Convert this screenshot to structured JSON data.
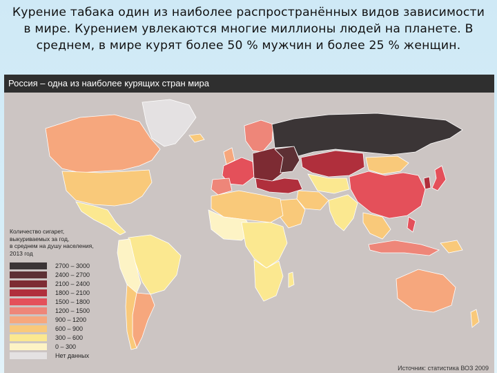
{
  "header": {
    "text": "Курение табака  один из наиболее распространённых видов зависимости в мире. Курением увлекаются многие миллионы людей на планете. В среднем, в мире курят более 50 % мужчин и более 25 % женщин."
  },
  "map": {
    "title": "Россия – одна из наиболее курящих стран мира",
    "legend_caption": "Количество сигарет,\nвыкуриваемых за год,\nв среднем на душу населения,\n2013 год",
    "legend": [
      {
        "label": "2700 – 3000",
        "color": "#3b3536"
      },
      {
        "label": "2400 – 2700",
        "color": "#5d3034"
      },
      {
        "label": "2100 – 2400",
        "color": "#7d2b33"
      },
      {
        "label": "1800 – 2100",
        "color": "#b02f3c"
      },
      {
        "label": "1500 – 1800",
        "color": "#e4505a"
      },
      {
        "label": "1200 – 1500",
        "color": "#ee8679"
      },
      {
        "label": "900 – 1200",
        "color": "#f6a77d"
      },
      {
        "label": "600 – 900",
        "color": "#f9c97a"
      },
      {
        "label": "300 – 600",
        "color": "#fbe890"
      },
      {
        "label": "0 – 300",
        "color": "#fdf3c5"
      },
      {
        "label": "Нет данных",
        "color": "#e4e1e2"
      }
    ],
    "source": "Источник: статистика ВОЗ 2009"
  }
}
